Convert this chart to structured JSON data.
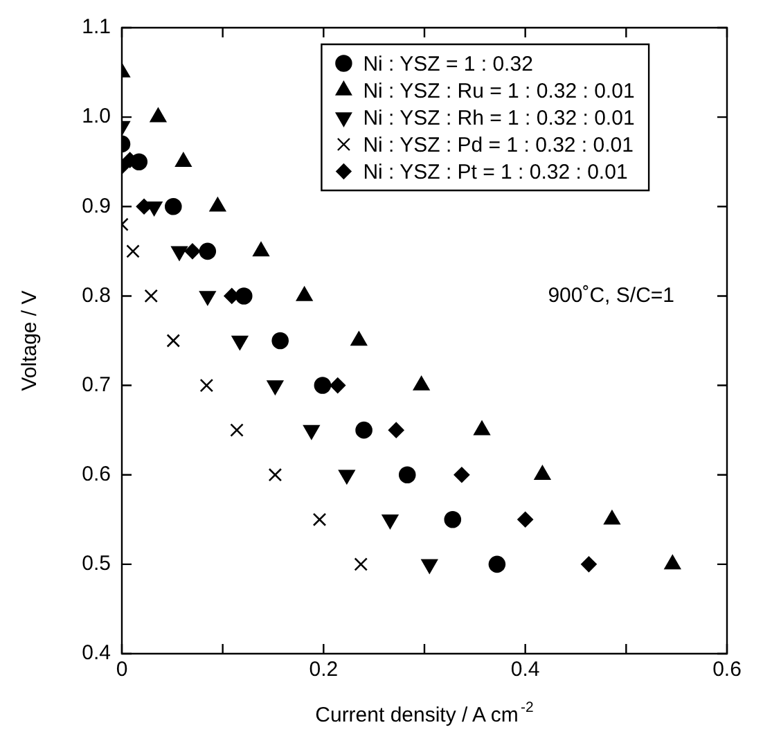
{
  "chart_data": {
    "type": "scatter",
    "xlabel": "Current density / A cm$^{-2}$",
    "ylabel": "Voltage / V",
    "xlim": [
      0,
      0.6
    ],
    "ylim": [
      0.4,
      1.1
    ],
    "xticks": [
      0,
      {
        "value": 0.1,
        "label": null
      },
      0.2,
      {
        "value": 0.3,
        "label": null
      },
      0.4,
      {
        "value": 0.5,
        "label": null
      },
      0.6
    ],
    "yticks": [
      0.4,
      0.5,
      0.6,
      0.7,
      0.8,
      0.9,
      {
        "value": 1,
        "label": "1.0"
      },
      1.1
    ],
    "grid": false,
    "legend": "top right",
    "annotations": [
      "900˚C, S/C=1"
    ],
    "series": [
      {
        "name": "Ni : YSZ = 1 : 0.32",
        "color": "#000000",
        "marker": "circle",
        "x": [
          0,
          0.017,
          0.051,
          0.085,
          0.121,
          0.157,
          0.199,
          0.24,
          0.283,
          0.328,
          0.372
        ],
        "values": [
          0.97,
          0.95,
          0.9,
          0.85,
          0.8,
          0.75,
          0.7,
          0.65,
          0.6,
          0.55,
          0.5
        ]
      },
      {
        "name": "Ni : YSZ : Ru = 1 : 0.32 : 0.01",
        "color": "#000000",
        "marker": "triangle",
        "x": [
          0,
          0.036,
          0.061,
          0.095,
          0.138,
          0.181,
          0.235,
          0.297,
          0.357,
          0.417,
          0.486,
          0.546
        ],
        "values": [
          1.05,
          1,
          0.95,
          0.9,
          0.85,
          0.8,
          0.75,
          0.7,
          0.65,
          0.6,
          0.55,
          0.5
        ]
      },
      {
        "name": "Ni : YSZ : Rh = 1 : 0.32 : 0.01",
        "color": "#000000",
        "marker": "triangle-down",
        "x": [
          0,
          0.032,
          0.057,
          0.085,
          0.117,
          0.152,
          0.188,
          0.223,
          0.266,
          0.305
        ],
        "values": [
          0.99,
          0.9,
          0.85,
          0.8,
          0.75,
          0.7,
          0.65,
          0.6,
          0.55,
          0.5
        ]
      },
      {
        "name": "Ni : YSZ : Pd = 1 : 0.32 : 0.01",
        "color": "#000000",
        "marker": "cross",
        "x": [
          0,
          0.011,
          0.029,
          0.051,
          0.084,
          0.114,
          0.152,
          0.196,
          0.237
        ],
        "values": [
          0.88,
          0.85,
          0.8,
          0.75,
          0.7,
          0.65,
          0.6,
          0.55,
          0.5
        ]
      },
      {
        "name": "Ni : YSZ : Pt = 1 : 0.32 : 0.01",
        "color": "#000000",
        "marker": "diamond",
        "x": [
          0,
          0.008,
          0.022,
          0.07,
          0.109,
          0.214,
          0.272,
          0.337,
          0.4,
          0.463
        ],
        "values": [
          0.945,
          0.952,
          0.9,
          0.85,
          0.8,
          0.7,
          0.65,
          0.6,
          0.55,
          0.5
        ]
      }
    ]
  }
}
